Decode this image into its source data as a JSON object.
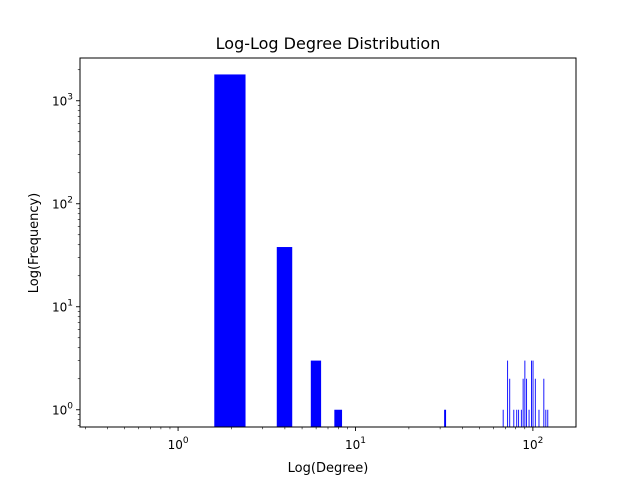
{
  "chart_data": {
    "type": "bar",
    "title": "Log-Log Degree Distribution",
    "xlabel": "Log(Degree)",
    "ylabel": "Log(Frequency)",
    "xscale": "log",
    "yscale": "log",
    "xlim": [
      0.28,
      175
    ],
    "ylim": [
      0.68,
      2600
    ],
    "grid": false,
    "bar_color": "#0000ff",
    "x_ticks": [
      {
        "value": 1,
        "base": "10",
        "exp": "0"
      },
      {
        "value": 10,
        "base": "10",
        "exp": "1"
      },
      {
        "value": 100,
        "base": "10",
        "exp": "2"
      }
    ],
    "y_ticks": [
      {
        "value": 1,
        "base": "10",
        "exp": "0"
      },
      {
        "value": 10,
        "base": "10",
        "exp": "1"
      },
      {
        "value": 100,
        "base": "10",
        "exp": "2"
      },
      {
        "value": 1000,
        "base": "10",
        "exp": "3"
      }
    ],
    "bars": [
      {
        "x": 2,
        "y": 1800
      },
      {
        "x": 4,
        "y": 38
      },
      {
        "x": 6,
        "y": 3
      },
      {
        "x": 8,
        "y": 1
      },
      {
        "x": 32,
        "y": 1
      },
      {
        "x": 68,
        "y": 1
      },
      {
        "x": 72,
        "y": 3
      },
      {
        "x": 74,
        "y": 2
      },
      {
        "x": 78,
        "y": 1
      },
      {
        "x": 81,
        "y": 1
      },
      {
        "x": 83,
        "y": 1
      },
      {
        "x": 86,
        "y": 1
      },
      {
        "x": 88,
        "y": 2
      },
      {
        "x": 90,
        "y": 3
      },
      {
        "x": 92,
        "y": 2
      },
      {
        "x": 95,
        "y": 1
      },
      {
        "x": 98,
        "y": 3
      },
      {
        "x": 100,
        "y": 3
      },
      {
        "x": 103,
        "y": 2
      },
      {
        "x": 108,
        "y": 1
      },
      {
        "x": 115,
        "y": 2
      },
      {
        "x": 118,
        "y": 1
      },
      {
        "x": 121,
        "y": 1
      }
    ]
  }
}
